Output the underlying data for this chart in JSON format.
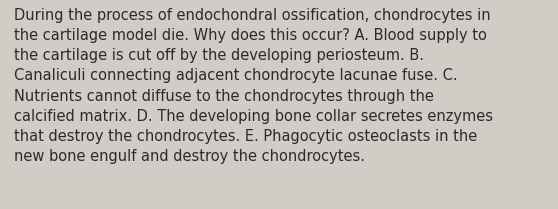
{
  "text": "During the process of endochondral ossification, chondrocytes in\nthe cartilage model die. Why does this occur? A. Blood supply to\nthe cartilage is cut off by the developing periosteum. B.\nCanaliculi connecting adjacent chondrocyte lacunae fuse. C.\nNutrients cannot diffuse to the chondrocytes through the\ncalcified matrix. D. The developing bone collar secretes enzymes\nthat destroy the chondrocytes. E. Phagocytic osteoclasts in the\nnew bone engulf and destroy the chondrocytes.",
  "background_color": "#d0ccc6",
  "text_color": "#2b2b2b",
  "font_size": 10.5,
  "font_family": "DejaVu Sans",
  "figwidth": 5.58,
  "figheight": 2.09,
  "dpi": 100
}
